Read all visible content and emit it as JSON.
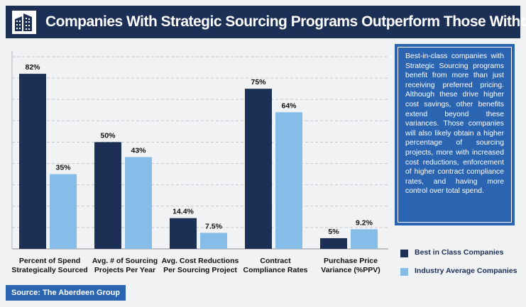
{
  "header": {
    "title": "Companies With Strategic Sourcing Programs Outperform Those Without",
    "logo_icon": "building-icon"
  },
  "callout": {
    "text": "Best-in-class companies with Strategic Sourcing programs benefit from more than just receiving preferred pricing. Although these drive higher cost savings, other benefits extend beyond these variances. Those companies will also likely obtain a higher percentage of sourcing projects, more with increased cost reductions, enforcement of higher contract compliance rates, and having more control over total spend."
  },
  "source": {
    "label": "Source: The Aberdeen Group"
  },
  "chart_data": {
    "type": "bar",
    "categories": [
      "Percent of Spend Strategically Sourced",
      "Avg. # of Sourcing Projects Per Year",
      "Avg. Cost Reductions Per Sourcing Project",
      "Contract Compliance Rates",
      "Purchase Price Variance (%PPV)"
    ],
    "category_lines": [
      [
        "Percent of Spend",
        "Strategically Sourced"
      ],
      [
        "Avg. # of Sourcing",
        "Projects Per Year"
      ],
      [
        "Avg. Cost Reductions",
        "Per Sourcing Project"
      ],
      [
        "Contract",
        "Compliance Rates"
      ],
      [
        "Purchase Price",
        "Variance (%PPV)"
      ]
    ],
    "series": [
      {
        "name": "Best in Class Companies",
        "color": "#1c2f55",
        "values": [
          82,
          50,
          14.4,
          75,
          5
        ],
        "labels": [
          "82%",
          "50%",
          "14.4%",
          "75%",
          "5%"
        ]
      },
      {
        "name": "Industry Average Companies",
        "color": "#85bde8",
        "values": [
          35,
          43,
          7.5,
          64,
          9.2
        ],
        "labels": [
          "35%",
          "43%",
          "7.5%",
          "64%",
          "9.2%"
        ]
      }
    ],
    "ylim": [
      0,
      90
    ],
    "grid": true,
    "legend": "bottom-right"
  }
}
